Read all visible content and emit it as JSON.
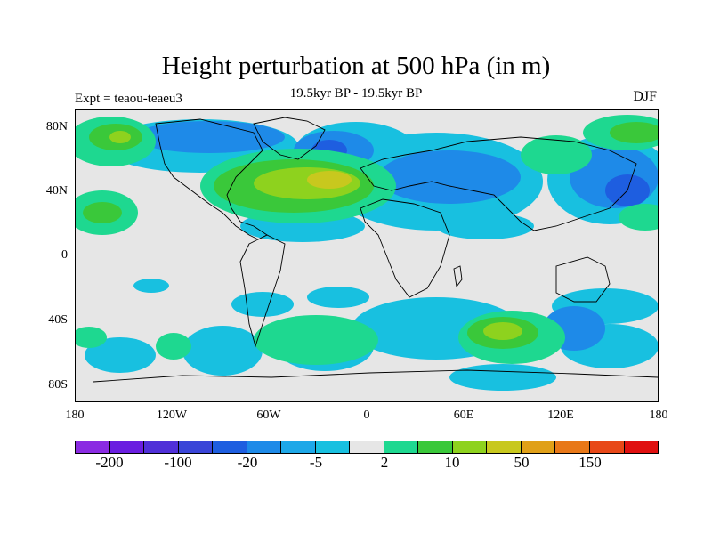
{
  "title": "Height perturbation at 500 hPa (in m)",
  "subtitle_left": "Expt = teaou-teaeu3",
  "subtitle_center": "19.5kyr BP - 19.5kyr BP",
  "subtitle_right": "DJF",
  "lat_labels": [
    "80N",
    "40N",
    "0",
    "40S",
    "80S"
  ],
  "lon_labels": [
    "180",
    "120W",
    "60W",
    "0",
    "60E",
    "120E",
    "180"
  ],
  "colorbar": {
    "colors": [
      "#8a2be2",
      "#6a1ee0",
      "#5030d8",
      "#3a45d8",
      "#1e5ee0",
      "#1e8ae8",
      "#1ea8e8",
      "#18c0e0",
      "#e6e6e6",
      "#1ed890",
      "#3ac83a",
      "#8ed21e",
      "#c8c81e",
      "#e0a018",
      "#e87818",
      "#e84818",
      "#e01010"
    ],
    "labels": [
      "-200",
      "-100",
      "-20",
      "-5",
      "2",
      "10",
      "50",
      "150"
    ]
  }
}
